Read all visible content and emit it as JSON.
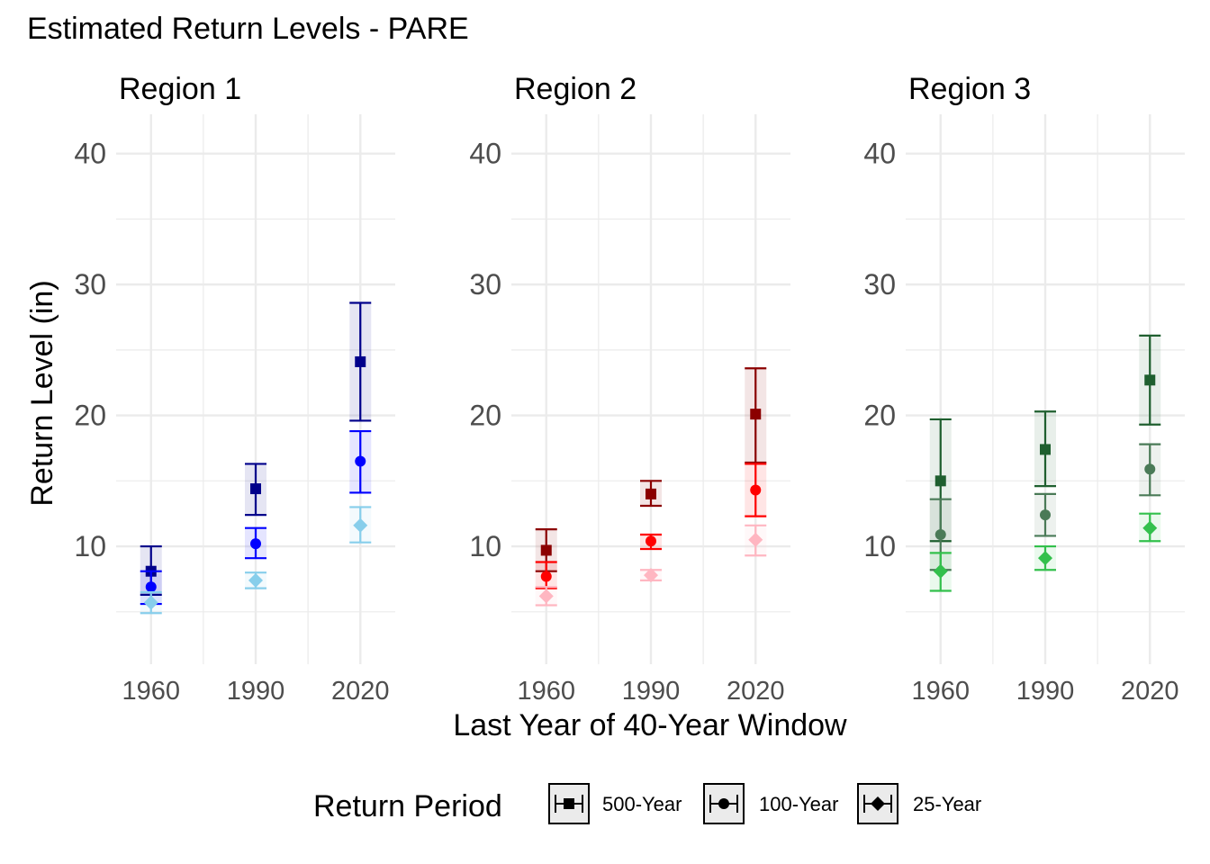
{
  "chart_data": {
    "type": "scatter",
    "title": "Estimated Return Levels - PARE",
    "xlabel": "Last Year of 40-Year Window",
    "ylabel": "Return Level (in)",
    "x_ticks": [
      1960,
      1990,
      2020
    ],
    "y_ticks": [
      10,
      20,
      30,
      40
    ],
    "xlim": [
      1950,
      2030
    ],
    "ylim": [
      1,
      43
    ],
    "grid": true,
    "legend": {
      "title": "Return Period",
      "position": "bottom",
      "items": [
        {
          "label": "500-Year",
          "shape": "square"
        },
        {
          "label": "100-Year",
          "shape": "circle"
        },
        {
          "label": "25-Year",
          "shape": "diamond"
        }
      ]
    },
    "panels": [
      {
        "title": "Region 1",
        "colors": {
          "500-Year": "#00008b",
          "100-Year": "#0000ff",
          "25-Year": "#87ceeb"
        },
        "series": [
          {
            "name": "500-Year",
            "points": [
              {
                "x": 1960,
                "y": 8.1,
                "lo": 6.3,
                "hi": 10.0
              },
              {
                "x": 1990,
                "y": 14.4,
                "lo": 12.4,
                "hi": 16.3
              },
              {
                "x": 2020,
                "y": 24.1,
                "lo": 19.6,
                "hi": 28.6
              }
            ]
          },
          {
            "name": "100-Year",
            "points": [
              {
                "x": 1960,
                "y": 6.9,
                "lo": 5.6,
                "hi": 8.1
              },
              {
                "x": 1990,
                "y": 10.2,
                "lo": 9.1,
                "hi": 11.4
              },
              {
                "x": 2020,
                "y": 16.5,
                "lo": 14.1,
                "hi": 18.8
              }
            ]
          },
          {
            "name": "25-Year",
            "points": [
              {
                "x": 1960,
                "y": 5.7,
                "lo": 4.9,
                "hi": 6.5
              },
              {
                "x": 1990,
                "y": 7.4,
                "lo": 6.8,
                "hi": 8.0
              },
              {
                "x": 2020,
                "y": 11.6,
                "lo": 10.3,
                "hi": 13.0
              }
            ]
          }
        ]
      },
      {
        "title": "Region 2",
        "colors": {
          "500-Year": "#8b0000",
          "100-Year": "#ff0000",
          "25-Year": "#ffb6c1"
        },
        "series": [
          {
            "name": "500-Year",
            "points": [
              {
                "x": 1960,
                "y": 9.7,
                "lo": 8.1,
                "hi": 11.3
              },
              {
                "x": 1990,
                "y": 14.0,
                "lo": 13.1,
                "hi": 15.0
              },
              {
                "x": 2020,
                "y": 20.1,
                "lo": 16.4,
                "hi": 23.6
              }
            ]
          },
          {
            "name": "100-Year",
            "points": [
              {
                "x": 1960,
                "y": 7.7,
                "lo": 6.8,
                "hi": 8.8
              },
              {
                "x": 1990,
                "y": 10.4,
                "lo": 9.8,
                "hi": 10.9
              },
              {
                "x": 2020,
                "y": 14.3,
                "lo": 12.3,
                "hi": 16.3
              }
            ]
          },
          {
            "name": "25-Year",
            "points": [
              {
                "x": 1960,
                "y": 6.2,
                "lo": 5.5,
                "hi": 6.9
              },
              {
                "x": 1990,
                "y": 7.8,
                "lo": 7.4,
                "hi": 8.2
              },
              {
                "x": 2020,
                "y": 10.5,
                "lo": 9.3,
                "hi": 11.6
              }
            ]
          }
        ]
      },
      {
        "title": "Region 3",
        "colors": {
          "500-Year": "#1f5f2f",
          "100-Year": "#4a7a57",
          "25-Year": "#33c04c"
        },
        "series": [
          {
            "name": "500-Year",
            "points": [
              {
                "x": 1960,
                "y": 15.0,
                "lo": 10.4,
                "hi": 19.7
              },
              {
                "x": 1990,
                "y": 17.4,
                "lo": 14.6,
                "hi": 20.3
              },
              {
                "x": 2020,
                "y": 22.7,
                "lo": 19.3,
                "hi": 26.1
              }
            ]
          },
          {
            "name": "100-Year",
            "points": [
              {
                "x": 1960,
                "y": 10.9,
                "lo": 8.2,
                "hi": 13.6
              },
              {
                "x": 1990,
                "y": 12.4,
                "lo": 10.8,
                "hi": 14.0
              },
              {
                "x": 2020,
                "y": 15.9,
                "lo": 13.9,
                "hi": 17.8
              }
            ]
          },
          {
            "name": "25-Year",
            "points": [
              {
                "x": 1960,
                "y": 8.1,
                "lo": 6.6,
                "hi": 9.5
              },
              {
                "x": 1990,
                "y": 9.1,
                "lo": 8.2,
                "hi": 10.0
              },
              {
                "x": 2020,
                "y": 11.4,
                "lo": 10.4,
                "hi": 12.5
              }
            ]
          }
        ]
      }
    ]
  }
}
